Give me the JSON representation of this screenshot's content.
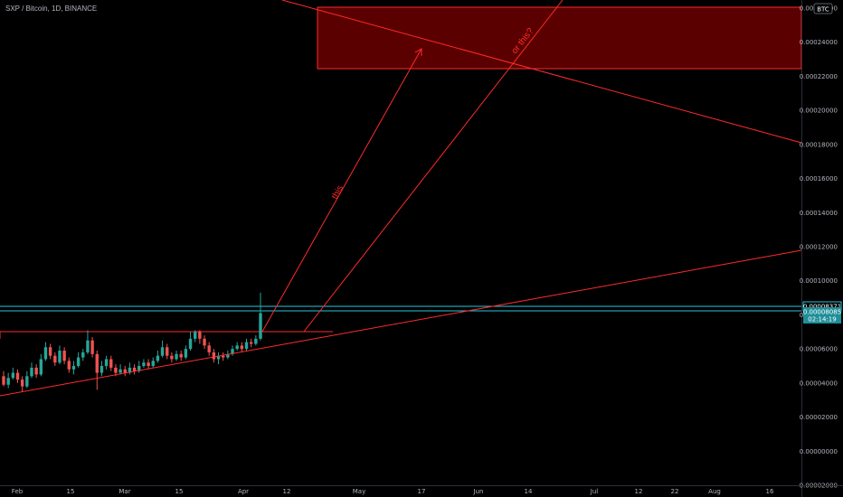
{
  "header": {
    "symbol_line": "SXP / Bitcoin, 1D, BINANCE"
  },
  "colors": {
    "up": "#26a69a",
    "down": "#ef5350",
    "drawing": "#ff2a2a",
    "zone_fill": "#6b0000",
    "level": "#26c6da",
    "axis_text": "#b2b5be"
  },
  "chart_data": {
    "type": "candlestick",
    "ylim": [
      -2e-05,
      0.00026
    ],
    "y_ticks": [
      "0.00026000",
      "0.00024000",
      "0.00022000",
      "0.00020000",
      "0.00018000",
      "0.00016000",
      "0.00014000",
      "0.00012000",
      "0.00010000",
      "0.00008000",
      "0.00006000",
      "0.00004000",
      "0.00002000",
      "0.00000000",
      "-0.00002000"
    ],
    "x_ticks": [
      "Feb",
      "15",
      "Mar",
      "15",
      "Apr",
      "12",
      "May",
      "17",
      "Jun",
      "14",
      "Jul",
      "12",
      "22",
      "Aug",
      "16"
    ],
    "currency_badge": "BTC",
    "price_labels": {
      "level_upper": "0.00008371",
      "current": "0.00008085",
      "countdown": "02:14:19"
    },
    "annotations": [
      "this",
      "or this?"
    ],
    "candles": [
      [
        4.4,
        3.9,
        4.7,
        3.8
      ],
      [
        3.9,
        4.3,
        4.6,
        3.7
      ],
      [
        4.3,
        4.6,
        4.9,
        4.2
      ],
      [
        4.6,
        4.2,
        4.8,
        4.0
      ],
      [
        4.2,
        3.8,
        4.4,
        3.5
      ],
      [
        3.8,
        4.4,
        4.7,
        3.7
      ],
      [
        4.4,
        4.9,
        5.2,
        4.3
      ],
      [
        4.9,
        4.5,
        5.1,
        4.3
      ],
      [
        4.5,
        5.4,
        5.7,
        4.4
      ],
      [
        5.4,
        6.1,
        6.4,
        5.3
      ],
      [
        6.1,
        5.6,
        6.3,
        5.4
      ],
      [
        5.6,
        5.2,
        5.8,
        5.0
      ],
      [
        5.2,
        5.9,
        6.2,
        5.1
      ],
      [
        5.9,
        5.3,
        6.1,
        5.1
      ],
      [
        5.3,
        4.8,
        5.5,
        4.6
      ],
      [
        4.8,
        5.0,
        5.3,
        4.5
      ],
      [
        5.0,
        5.5,
        5.8,
        4.9
      ],
      [
        5.5,
        5.8,
        6.0,
        5.3
      ],
      [
        5.8,
        6.5,
        7.1,
        5.7
      ],
      [
        6.5,
        5.7,
        6.7,
        5.5
      ],
      [
        5.7,
        4.6,
        5.9,
        3.6
      ],
      [
        4.6,
        5.0,
        5.3,
        4.4
      ],
      [
        5.0,
        5.4,
        5.6,
        4.8
      ],
      [
        5.4,
        4.9,
        5.6,
        4.7
      ],
      [
        4.9,
        4.6,
        5.1,
        4.4
      ],
      [
        4.6,
        4.8,
        5.1,
        4.5
      ],
      [
        4.8,
        4.6,
        5.0,
        4.4
      ],
      [
        4.6,
        4.9,
        5.2,
        4.5
      ],
      [
        4.9,
        4.7,
        5.1,
        4.5
      ],
      [
        4.7,
        5.0,
        5.3,
        4.6
      ],
      [
        5.0,
        5.2,
        5.4,
        4.9
      ],
      [
        5.2,
        5.0,
        5.4,
        4.8
      ],
      [
        5.0,
        5.3,
        5.5,
        4.9
      ],
      [
        5.3,
        5.6,
        5.9,
        5.2
      ],
      [
        5.6,
        6.1,
        6.5,
        5.5
      ],
      [
        6.1,
        5.6,
        6.3,
        5.4
      ],
      [
        5.6,
        5.4,
        5.8,
        5.2
      ],
      [
        5.4,
        5.7,
        5.9,
        5.3
      ],
      [
        5.7,
        5.5,
        5.9,
        5.3
      ],
      [
        5.5,
        6.0,
        6.2,
        5.4
      ],
      [
        6.0,
        6.6,
        7.0,
        5.9
      ],
      [
        6.6,
        7.0,
        7.1,
        6.4
      ],
      [
        7.0,
        6.6,
        7.1,
        6.3
      ],
      [
        6.6,
        6.2,
        6.8,
        6.0
      ],
      [
        6.2,
        5.8,
        6.4,
        5.6
      ],
      [
        5.8,
        5.4,
        6.0,
        5.2
      ],
      [
        5.4,
        5.6,
        5.8,
        5.1
      ],
      [
        5.6,
        5.5,
        5.8,
        5.3
      ],
      [
        5.5,
        5.7,
        5.9,
        5.4
      ],
      [
        5.7,
        6.0,
        6.2,
        5.6
      ],
      [
        6.0,
        6.2,
        6.4,
        5.9
      ],
      [
        6.2,
        6.0,
        6.4,
        5.8
      ],
      [
        6.0,
        6.4,
        6.6,
        5.9
      ],
      [
        6.4,
        6.3,
        6.6,
        6.1
      ],
      [
        6.3,
        6.6,
        6.8,
        6.2
      ],
      [
        6.6,
        8.1,
        9.3,
        6.5
      ]
    ]
  }
}
